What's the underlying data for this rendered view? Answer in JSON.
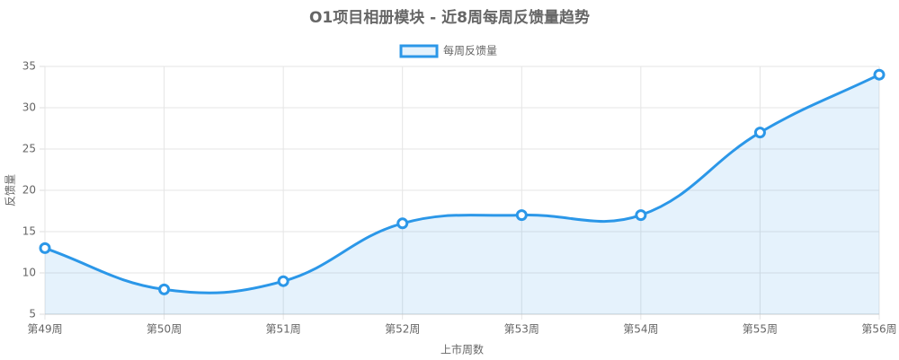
{
  "chart_data": {
    "type": "line",
    "title": "O1项目相册模块 - 近8周每周反馈量趋势",
    "x_label": "上市周数",
    "y_label": "反馈量",
    "categories": [
      "第49周",
      "第50周",
      "第51周",
      "第52周",
      "第53周",
      "第54周",
      "第55周",
      "第56周"
    ],
    "series": [
      {
        "name": "每周反馈量",
        "color": "#2b97e8",
        "values": [
          13,
          8,
          9,
          16,
          17,
          17,
          27,
          34
        ]
      }
    ],
    "ylim": [
      5,
      35
    ],
    "yticks": [
      5,
      10,
      15,
      20,
      25,
      30,
      35
    ],
    "grid": true,
    "fill": true,
    "legend": "top"
  }
}
